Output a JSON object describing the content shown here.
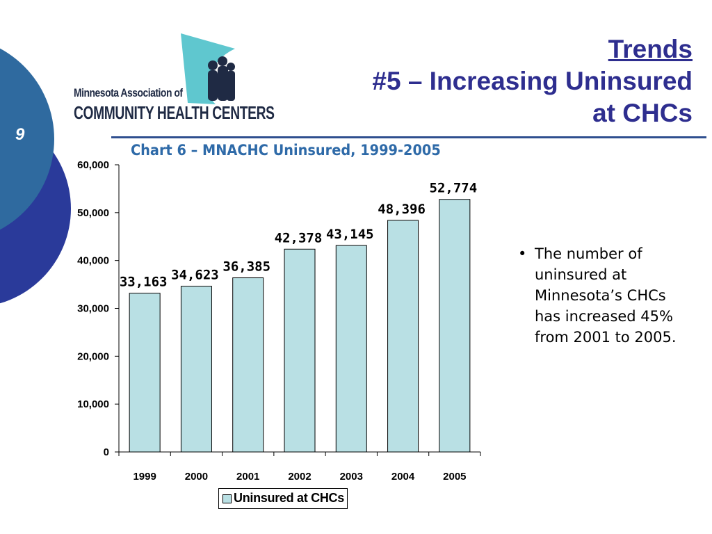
{
  "slide": {
    "number": "9"
  },
  "logo": {
    "line1": "Minnesota Association of",
    "line2": "COMMUNITY HEALTH CENTERS"
  },
  "title": {
    "line1": "Trends",
    "line2": "#5 – Increasing Uninsured",
    "line3": "at CHCs"
  },
  "bullets": [
    "The number of uninsured at Minnesota’s CHCs has increased 45% from 2001 to 2005."
  ],
  "colors": {
    "title": "#2e2e8f",
    "chart_title": "#2e6aa8",
    "bar_fill": "#b9e0e4",
    "rule": "#2f4f8f",
    "circle_outer": "#2a3a9a",
    "circle_inner": "#2f6a9f"
  },
  "chart_data": {
    "type": "bar",
    "title": "Chart 6 – MNACHC Uninsured, 1999-2005",
    "categories": [
      "1999",
      "2000",
      "2001",
      "2002",
      "2003",
      "2004",
      "2005"
    ],
    "series": [
      {
        "name": "Uninsured at CHCs",
        "values": [
          33163,
          34623,
          36385,
          42378,
          43145,
          48396,
          52774
        ],
        "labels": [
          "33,163",
          "34,623",
          "36,385",
          "42,378",
          "43,145",
          "48,396",
          "52,774"
        ]
      }
    ],
    "ylim": [
      0,
      60000
    ],
    "yticks": [
      0,
      10000,
      20000,
      30000,
      40000,
      50000,
      60000
    ],
    "ytick_labels": [
      "0",
      "10,000",
      "20,000",
      "30,000",
      "40,000",
      "50,000",
      "60,000"
    ],
    "legend": "bottom",
    "grid": false
  }
}
